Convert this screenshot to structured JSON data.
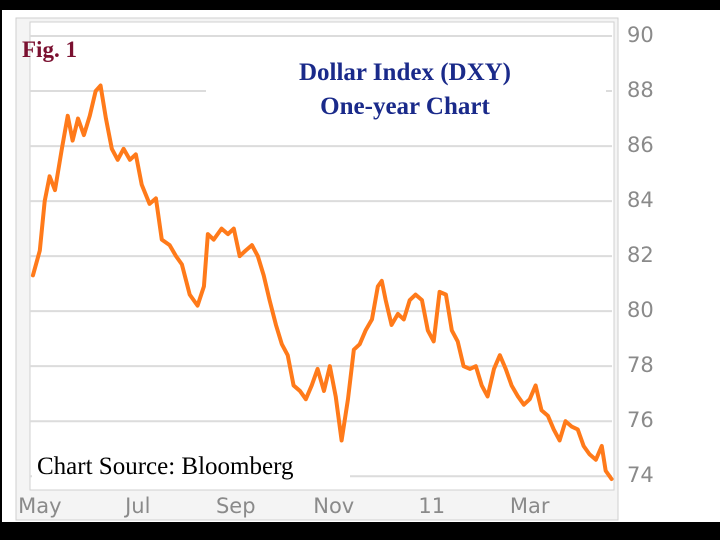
{
  "chart_data": {
    "type": "line",
    "figure_label": "Fig. 1",
    "title": "Dollar Index (DXY)",
    "subtitle": "One-year Chart",
    "source": "Chart Source: Bloomberg",
    "x": [
      -0.14,
      0,
      0.1,
      0.2,
      0.31,
      0.45,
      0.57,
      0.67,
      0.78,
      0.9,
      1.02,
      1.14,
      1.24,
      1.35,
      1.47,
      1.59,
      1.71,
      1.84,
      1.96,
      2.08,
      2.24,
      2.37,
      2.49,
      2.65,
      2.78,
      2.9,
      3.06,
      3.22,
      3.35,
      3.43,
      3.55,
      3.71,
      3.84,
      3.96,
      4.08,
      4.2,
      4.33,
      4.45,
      4.57,
      4.69,
      4.82,
      4.94,
      5.06,
      5.18,
      5.31,
      5.43,
      5.55,
      5.67,
      5.8,
      5.92,
      6.04,
      6.16,
      6.29,
      6.41,
      6.53,
      6.65,
      6.78,
      6.9,
      6.98,
      7.06,
      7.18,
      7.31,
      7.43,
      7.55,
      7.67,
      7.8,
      7.92,
      8.04,
      8.16,
      8.29,
      8.41,
      8.53,
      8.65,
      8.78,
      8.9,
      9.02,
      9.14,
      9.27,
      9.39,
      9.51,
      9.63,
      9.76,
      9.88,
      10,
      10.12,
      10.24,
      10.37,
      10.49,
      10.61,
      10.73,
      10.86,
      10.98,
      11.1,
      11.22,
      11.35,
      11.47,
      11.55,
      11.67
    ],
    "series": [
      {
        "name": "DXY",
        "color": "#ff7a1a",
        "values": [
          81.3,
          82.2,
          84.0,
          84.9,
          84.4,
          85.9,
          87.1,
          86.2,
          87.0,
          86.4,
          87.1,
          88.0,
          88.2,
          87.0,
          85.9,
          85.5,
          85.9,
          85.5,
          85.7,
          84.6,
          83.9,
          84.1,
          82.6,
          82.4,
          82.0,
          81.7,
          80.6,
          80.2,
          80.9,
          82.8,
          82.6,
          83.0,
          82.8,
          83.0,
          82.0,
          82.2,
          82.4,
          82.0,
          81.3,
          80.4,
          79.5,
          78.8,
          78.4,
          77.3,
          77.1,
          76.8,
          77.3,
          77.9,
          77.1,
          78.0,
          76.9,
          75.3,
          76.8,
          78.6,
          78.8,
          79.3,
          79.7,
          80.9,
          81.1,
          80.4,
          79.5,
          79.9,
          79.7,
          80.4,
          80.6,
          80.4,
          79.3,
          78.9,
          80.7,
          80.6,
          79.3,
          78.9,
          78.0,
          77.9,
          78.0,
          77.3,
          76.9,
          77.9,
          78.4,
          77.9,
          77.3,
          76.9,
          76.6,
          76.8,
          77.3,
          76.4,
          76.2,
          75.7,
          75.3,
          76.0,
          75.8,
          75.7,
          75.1,
          74.8,
          74.6,
          75.1,
          74.2,
          73.9
        ]
      }
    ],
    "xlim": [
      -0.2,
      11.72
    ],
    "xticks": [
      {
        "value": 0,
        "label": "May"
      },
      {
        "value": 2,
        "label": "Jul"
      },
      {
        "value": 4,
        "label": "Sep"
      },
      {
        "value": 6,
        "label": "Nov"
      },
      {
        "value": 8,
        "label": "11"
      },
      {
        "value": 10,
        "label": "Mar"
      }
    ],
    "ylim": [
      73.5,
      90.2
    ],
    "yticks": [
      74,
      76,
      78,
      80,
      82,
      84,
      86,
      88,
      90
    ],
    "grid": true
  }
}
